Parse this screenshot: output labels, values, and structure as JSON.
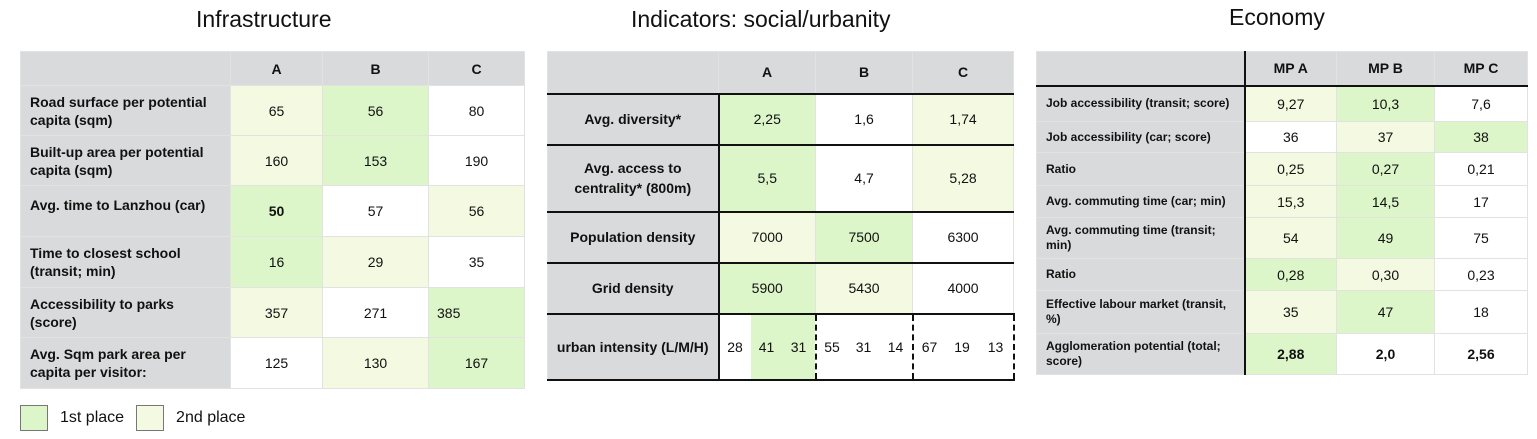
{
  "titles": {
    "infrastructure": "Infrastructure",
    "social": "Indicators: social/urbanity",
    "economy": "Economy"
  },
  "colors": {
    "first_place": "#dcf5c9",
    "second_place": "#f4f9e1",
    "header_bg": "#d9dadb"
  },
  "infrastructure": {
    "headers": [
      "A",
      "B",
      "C"
    ],
    "rows": [
      {
        "label": "Road surface per potential capita (sqm)",
        "values": [
          "65",
          "56",
          "80"
        ],
        "rank": [
          "2",
          "1",
          ""
        ]
      },
      {
        "label": "Built-up area per potential capita (sqm)",
        "values": [
          "160",
          "153",
          "190"
        ],
        "rank": [
          "2",
          "1",
          ""
        ]
      },
      {
        "label": "Avg. time to Lanzhou (car)",
        "values": [
          "50",
          "57",
          "56"
        ],
        "rank": [
          "1",
          "",
          "2"
        ],
        "bold": [
          true,
          false,
          false
        ]
      },
      {
        "label": "Time to closest school (transit; min)",
        "values": [
          "16",
          "29",
          "35"
        ],
        "rank": [
          "1",
          "2",
          ""
        ]
      },
      {
        "label": "Accessibility to parks (score)",
        "values": [
          "357",
          "271",
          "385"
        ],
        "rank": [
          "2",
          "",
          "1"
        ]
      },
      {
        "label": "Avg. Sqm park area per capita per visitor:",
        "values": [
          "125",
          "130",
          "167"
        ],
        "rank": [
          "",
          "2",
          "1"
        ]
      }
    ]
  },
  "social": {
    "headers": [
      "A",
      "B",
      "C"
    ],
    "rows": [
      {
        "label": "Avg. diversity*",
        "values": [
          "2,25",
          "1,6",
          "1,74"
        ],
        "rank": [
          "1",
          "",
          "2"
        ]
      },
      {
        "label": "Avg. access to centrality* (800m)",
        "values": [
          "5,5",
          "4,7",
          "5,28"
        ],
        "rank": [
          "1",
          "",
          "2"
        ]
      },
      {
        "label": "Population density",
        "values": [
          "7000",
          "7500",
          "6300"
        ],
        "rank": [
          "2",
          "1",
          ""
        ]
      },
      {
        "label": "Grid density",
        "values": [
          "5900",
          "5430",
          "4000"
        ],
        "rank": [
          "1",
          "2",
          ""
        ]
      }
    ],
    "intensity": {
      "label": "urban intensity (L/M/H)",
      "values": [
        "28",
        "41",
        "31",
        "55",
        "31",
        "14",
        "67",
        "19",
        "13"
      ],
      "rank": [
        "",
        "1",
        "1",
        "",
        "",
        "",
        "",
        "",
        ""
      ]
    }
  },
  "economy": {
    "headers": [
      "MP A",
      "MP B",
      "MP C"
    ],
    "rows": [
      {
        "label": "Job accessibility (transit; score)",
        "values": [
          "9,27",
          "10,3",
          "7,6"
        ],
        "rank": [
          "2",
          "1",
          ""
        ],
        "clip": true
      },
      {
        "label": "Job accessibility (car; score)",
        "values": [
          "36",
          "37",
          "38"
        ],
        "rank": [
          "",
          "2",
          "1"
        ]
      },
      {
        "label": "Ratio",
        "values": [
          "0,25",
          "0,27",
          "0,21"
        ],
        "rank": [
          "2",
          "1",
          ""
        ]
      },
      {
        "label": "Avg. commuting time (car; min)",
        "values": [
          "15,3",
          "14,5",
          "17"
        ],
        "rank": [
          "2",
          "1",
          ""
        ],
        "clip": true
      },
      {
        "label": "Avg. commuting time (transit; min)",
        "values": [
          "54",
          "49",
          "75"
        ],
        "rank": [
          "2",
          "1",
          ""
        ]
      },
      {
        "label": "Ratio",
        "values": [
          "0,28",
          "0,30",
          "0,23"
        ],
        "rank": [
          "1",
          "2",
          ""
        ]
      },
      {
        "label": "Effective labour market (transit, %)",
        "values": [
          "35",
          "47",
          "18"
        ],
        "rank": [
          "2",
          "1",
          ""
        ]
      },
      {
        "label": "Agglomeration potential (total; score)",
        "values": [
          "2,88",
          "2,0",
          "2,56"
        ],
        "rank": [
          "1",
          "",
          ""
        ],
        "bold": [
          true,
          true,
          true
        ]
      }
    ]
  },
  "legend": {
    "first": "1st place",
    "second": "2nd place"
  }
}
